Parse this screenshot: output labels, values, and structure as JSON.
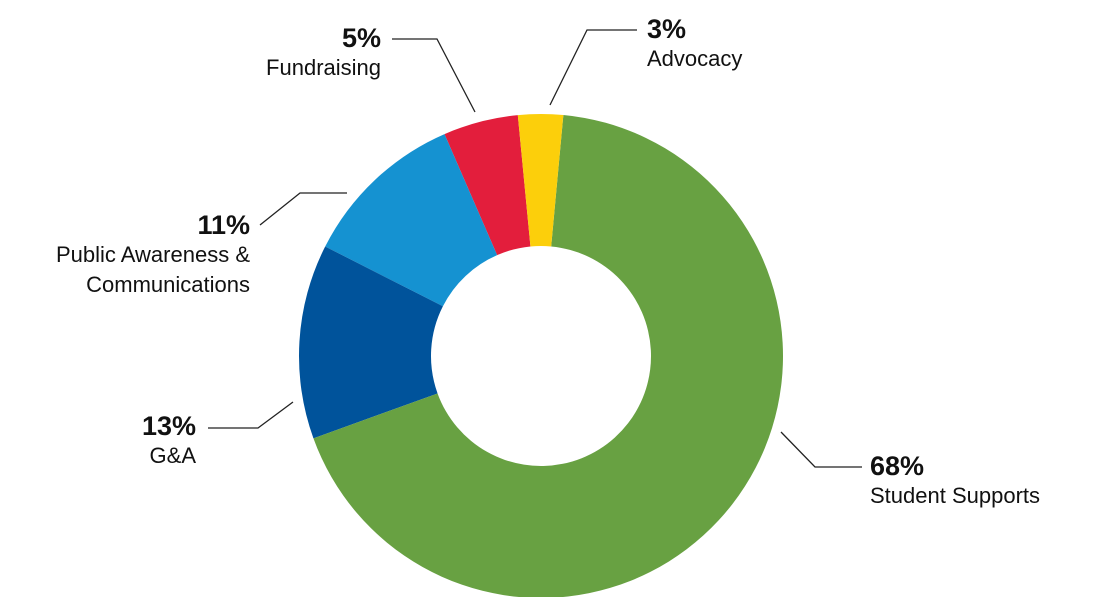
{
  "chart_data": {
    "type": "donut",
    "categories": [
      "Advocacy",
      "Student Supports",
      "G&A",
      "Public Awareness & Communications",
      "Fundraising"
    ],
    "values": [
      3,
      68,
      13,
      11,
      5
    ],
    "value_labels": [
      "3%",
      "68%",
      "13%",
      "11%",
      "5%"
    ],
    "colors": [
      "#fccf0b",
      "#68a142",
      "#00539b",
      "#1592d1",
      "#e31e3c"
    ]
  }
}
